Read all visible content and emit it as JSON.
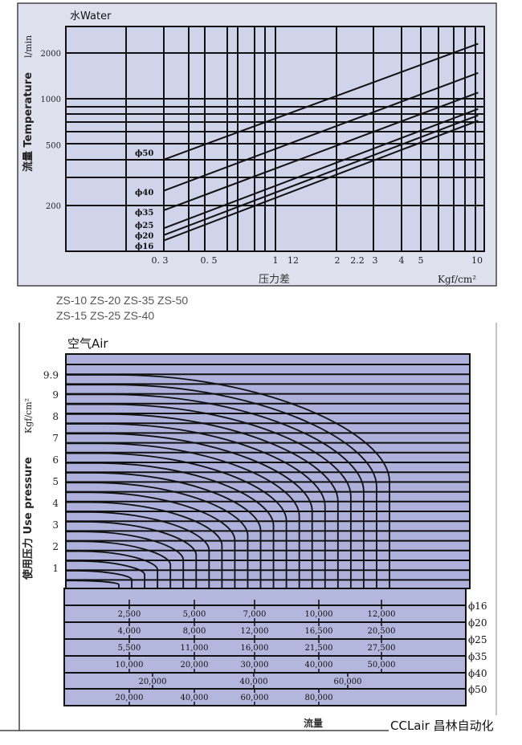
{
  "chart_data": [
    {
      "type": "line",
      "title": "水Water",
      "ylabel": "流量 Temperature",
      "yunit": "l/min",
      "xlabel": "压力差",
      "xunit": "Kgf/cm²",
      "xscale": "log",
      "yscale": "log",
      "xlim": [
        0.1,
        10.5
      ],
      "ylim": [
        100,
        2700
      ],
      "grid": true,
      "y_ticks": [
        "2000",
        "1000",
        "500",
        "200"
      ],
      "y_tick_values": [
        2000,
        1000,
        500,
        200
      ],
      "x_ticks": [
        "0. 3",
        "0. 5",
        "1",
        "12",
        "2",
        "2.2",
        "3",
        "4",
        "5",
        "10"
      ],
      "series": [
        {
          "name": "ϕ50",
          "x": [
            0.3,
            10
          ],
          "y": [
            400,
            2300
          ]
        },
        {
          "name": "ϕ40",
          "x": [
            0.3,
            10
          ],
          "y": [
            250,
            1480
          ]
        },
        {
          "name": "ϕ35",
          "x": [
            0.3,
            10
          ],
          "y": [
            186,
            1100
          ]
        },
        {
          "name": "ϕ25",
          "x": [
            0.3,
            10
          ],
          "y": [
            142,
            860
          ]
        },
        {
          "name": "ϕ20",
          "x": [
            0.3,
            10
          ],
          "y": [
            128,
            780
          ]
        },
        {
          "name": "ϕ16",
          "x": [
            0.3,
            10
          ],
          "y": [
            118,
            720
          ]
        }
      ]
    },
    {
      "type": "line",
      "title": "空气Air",
      "ylabel": "使用压力 Use pressure",
      "yunit": "Kgf/cm²",
      "xlabel": "流量",
      "grid": true,
      "y_ticks": [
        "9.9",
        "9",
        "8",
        "7",
        "6",
        "5",
        "4",
        "3",
        "2",
        "1"
      ],
      "curve_count": 22,
      "flow_table": {
        "rows": [
          {
            "size": "ϕ16",
            "values": [
              "2,500",
              "5,000",
              "7,000",
              "10,000",
              "12,000"
            ]
          },
          {
            "size": "ϕ20",
            "values": [
              "4,000",
              "8,000",
              "12,000",
              "16,500",
              "20,500"
            ]
          },
          {
            "size": "ϕ25",
            "values": [
              "5,500",
              "11,000",
              "16,000",
              "21,500",
              "27,500"
            ]
          },
          {
            "size": "ϕ35",
            "values": [
              "10,000",
              "20,000",
              "30,000",
              "40,000",
              "50,000"
            ]
          },
          {
            "size": "ϕ40",
            "values": [
              "20,000",
              "40,000",
              "60,000"
            ]
          },
          {
            "size": "ϕ50",
            "values": [
              "20,000",
              "40,000",
              "60,000",
              "80,000"
            ]
          }
        ]
      }
    }
  ],
  "models": {
    "line1": [
      "ZS-10",
      "ZS-20",
      "ZS-35",
      "ZS-50"
    ],
    "line2": [
      "ZS-15",
      "ZS-25",
      "ZS-40"
    ]
  },
  "watermark": "CCLair 昌林自动化",
  "colors": {
    "water_panel": "#dfe1ef",
    "water_plot": "#d0d4ea",
    "air_plot": "#adb1dc",
    "ink": "#111111"
  }
}
